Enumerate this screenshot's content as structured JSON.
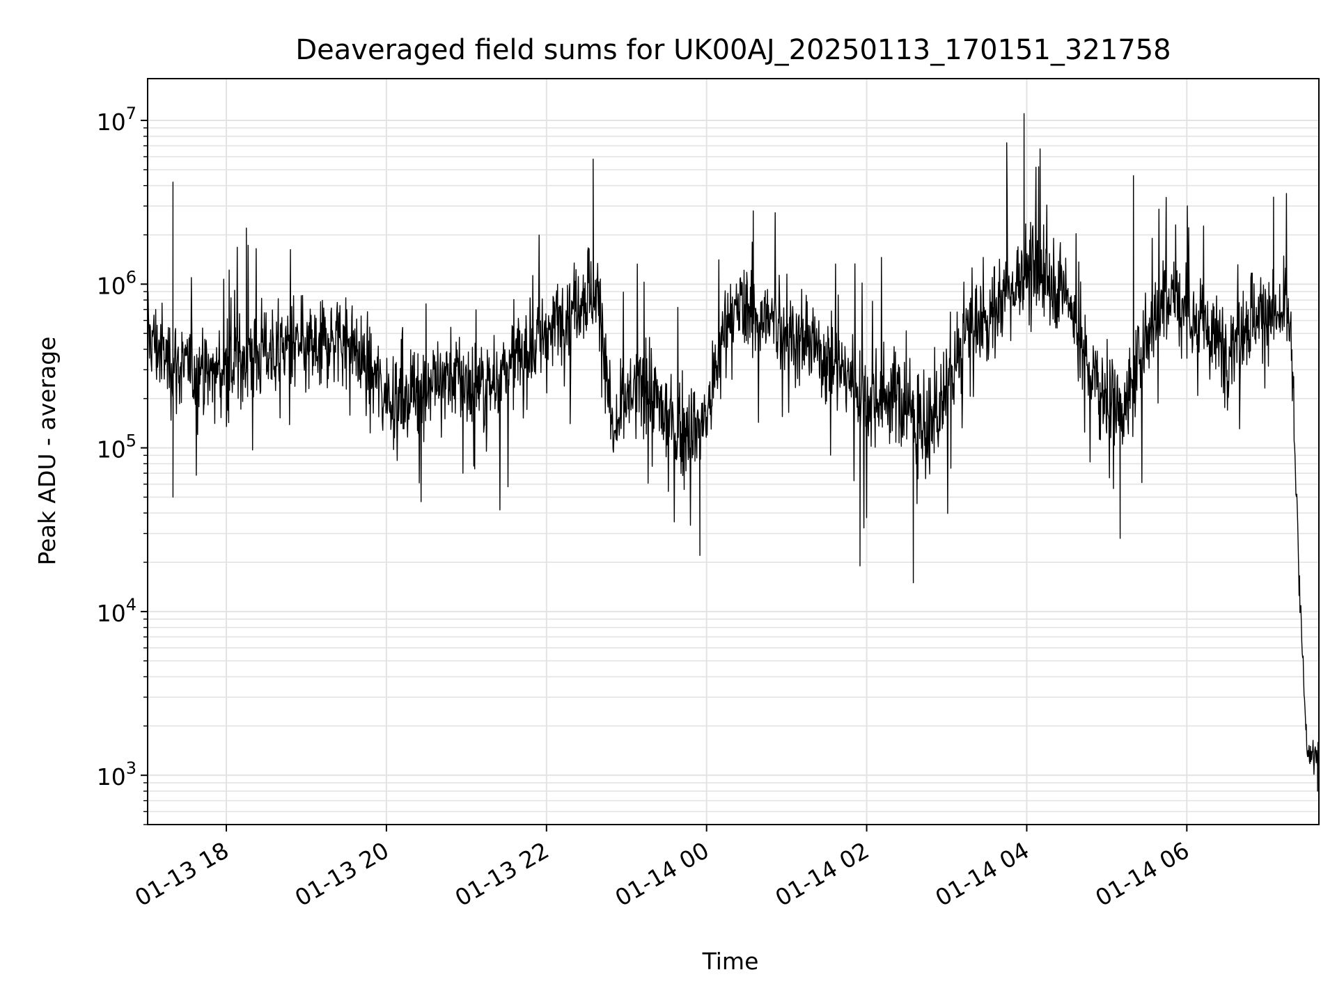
{
  "chart_data": {
    "type": "line",
    "title": "Deaveraged field sums for UK00AJ_20250113_170151_321758",
    "xlabel": "Time",
    "ylabel": "Peak ADU - average",
    "yscale": "log",
    "grid": true,
    "xlim": [
      "2025-01-13 17:01",
      "2025-01-14 07:39"
    ],
    "ylim": [
      500,
      18000000
    ],
    "x_ticks": [
      {
        "value": "2025-01-13 18:00",
        "label": "01-13 18"
      },
      {
        "value": "2025-01-13 20:00",
        "label": "01-13 20"
      },
      {
        "value": "2025-01-13 22:00",
        "label": "01-13 22"
      },
      {
        "value": "2025-01-14 00:00",
        "label": "01-14 00"
      },
      {
        "value": "2025-01-14 02:00",
        "label": "01-14 02"
      },
      {
        "value": "2025-01-14 04:00",
        "label": "01-14 04"
      },
      {
        "value": "2025-01-14 06:00",
        "label": "01-14 06"
      }
    ],
    "y_ticks": [
      {
        "value": 1000,
        "base": "10",
        "exp": "3"
      },
      {
        "value": 10000,
        "base": "10",
        "exp": "4"
      },
      {
        "value": 100000,
        "base": "10",
        "exp": "5"
      },
      {
        "value": 1000000,
        "base": "10",
        "exp": "6"
      },
      {
        "value": 10000000,
        "base": "10",
        "exp": "7"
      }
    ],
    "series": [
      {
        "color": "#000000",
        "x": [
          "2025-01-13 17:01",
          "2025-01-13 17:15",
          "2025-01-13 17:30",
          "2025-01-13 17:45",
          "2025-01-13 18:00",
          "2025-01-13 18:15",
          "2025-01-13 18:30",
          "2025-01-13 18:45",
          "2025-01-13 19:00",
          "2025-01-13 19:15",
          "2025-01-13 19:30",
          "2025-01-13 19:45",
          "2025-01-13 20:00",
          "2025-01-13 20:15",
          "2025-01-13 20:30",
          "2025-01-13 20:45",
          "2025-01-13 21:00",
          "2025-01-13 21:15",
          "2025-01-13 21:30",
          "2025-01-13 21:45",
          "2025-01-13 22:00",
          "2025-01-13 22:15",
          "2025-01-13 22:30",
          "2025-01-13 22:40",
          "2025-01-13 22:50",
          "2025-01-13 23:00",
          "2025-01-13 23:15",
          "2025-01-13 23:30",
          "2025-01-13 23:45",
          "2025-01-14 00:00",
          "2025-01-14 00:15",
          "2025-01-14 00:30",
          "2025-01-14 00:45",
          "2025-01-14 01:00",
          "2025-01-14 01:15",
          "2025-01-14 01:30",
          "2025-01-14 01:45",
          "2025-01-14 02:00",
          "2025-01-14 02:15",
          "2025-01-14 02:30",
          "2025-01-14 02:45",
          "2025-01-14 03:00",
          "2025-01-14 03:15",
          "2025-01-14 03:30",
          "2025-01-14 03:45",
          "2025-01-14 04:00",
          "2025-01-14 04:15",
          "2025-01-14 04:30",
          "2025-01-14 04:45",
          "2025-01-14 05:00",
          "2025-01-14 05:15",
          "2025-01-14 05:30",
          "2025-01-14 05:45",
          "2025-01-14 06:00",
          "2025-01-14 06:15",
          "2025-01-14 06:30",
          "2025-01-14 06:45",
          "2025-01-14 07:00",
          "2025-01-14 07:10",
          "2025-01-14 07:15",
          "2025-01-14 07:18",
          "2025-01-14 07:21",
          "2025-01-14 07:25",
          "2025-01-14 07:30",
          "2025-01-14 07:35",
          "2025-01-14 07:39"
        ],
        "y": [
          500000,
          350000,
          300000,
          280000,
          300000,
          350000,
          400000,
          420000,
          380000,
          450000,
          500000,
          300000,
          220000,
          200000,
          250000,
          280000,
          250000,
          230000,
          300000,
          400000,
          500000,
          700000,
          900000,
          800000,
          110000,
          200000,
          250000,
          150000,
          120000,
          150000,
          600000,
          700000,
          600000,
          500000,
          450000,
          350000,
          300000,
          200000,
          220000,
          180000,
          120000,
          200000,
          500000,
          600000,
          900000,
          1200000,
          1100000,
          900000,
          300000,
          200000,
          180000,
          500000,
          900000,
          700000,
          500000,
          400000,
          600000,
          700000,
          600000,
          700000,
          500000,
          100000,
          10000,
          1500,
          1300,
          1400
        ]
      }
    ],
    "spikes": {
      "max": [
        [
          "2025-01-13 17:20",
          4200000
        ],
        [
          "2025-01-13 18:15",
          2200000
        ],
        [
          "2025-01-13 22:35",
          5800000
        ],
        [
          "2025-01-14 00:35",
          2800000
        ],
        [
          "2025-01-14 03:45",
          7300000
        ],
        [
          "2025-01-14 03:58",
          11000000
        ],
        [
          "2025-01-14 04:10",
          6700000
        ],
        [
          "2025-01-14 05:20",
          4600000
        ],
        [
          "2025-01-14 07:05",
          3400000
        ]
      ],
      "min": [
        [
          "2025-01-13 17:20",
          50000
        ],
        [
          "2025-01-13 23:55",
          22000
        ],
        [
          "2025-01-14 01:55",
          19000
        ],
        [
          "2025-01-14 02:35",
          15000
        ],
        [
          "2025-01-14 05:10",
          28000
        ],
        [
          "2025-01-14 07:38",
          800
        ]
      ]
    }
  }
}
